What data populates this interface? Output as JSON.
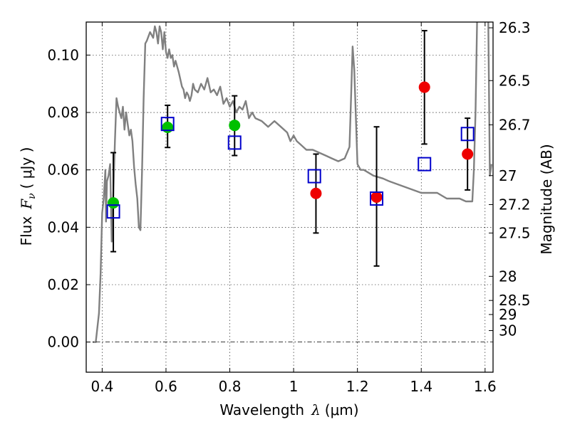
{
  "chart_data": {
    "type": "scatter",
    "title": "",
    "xlabel_main": "Wavelength",
    "xlabel_symbol": "λ",
    "xlabel_unit": "(μm)",
    "ylabel_main": "Flux",
    "ylabel_symbol": "F",
    "ylabel_sub": "ν",
    "ylabel_unit": "( μJy )",
    "y2label": "Magnitude (AB)",
    "xlim": [
      0.35,
      1.625
    ],
    "ylim": [
      -0.0105,
      0.1115
    ],
    "grid": true,
    "x_ticks": [
      {
        "value": 0.4,
        "label": "0.4"
      },
      {
        "value": 0.6,
        "label": "0.6"
      },
      {
        "value": 0.8,
        "label": "0.8"
      },
      {
        "value": 1.0,
        "label": "1"
      },
      {
        "value": 1.2,
        "label": "1.2"
      },
      {
        "value": 1.4,
        "label": "1.4"
      },
      {
        "value": 1.6,
        "label": "1.6"
      }
    ],
    "y_ticks": [
      {
        "value": 0.0,
        "label": "0.00"
      },
      {
        "value": 0.02,
        "label": "0.02"
      },
      {
        "value": 0.04,
        "label": "0.04"
      },
      {
        "value": 0.06,
        "label": "0.06"
      },
      {
        "value": 0.08,
        "label": "0.08"
      },
      {
        "value": 0.1,
        "label": "0.10"
      }
    ],
    "y2_ticks": [
      {
        "flux": 0.1095,
        "label": "26.3"
      },
      {
        "flux": 0.0911,
        "label": "26.5"
      },
      {
        "flux": 0.0757,
        "label": "26.7"
      },
      {
        "flux": 0.058,
        "label": "27"
      },
      {
        "flux": 0.0479,
        "label": "27.2"
      },
      {
        "flux": 0.038,
        "label": "27.5"
      },
      {
        "flux": 0.0229,
        "label": "28"
      },
      {
        "flux": 0.0145,
        "label": "28.5"
      },
      {
        "flux": 0.0096,
        "label": "29"
      },
      {
        "flux": 0.004,
        "label": "30"
      }
    ],
    "series": [
      {
        "kind": "line",
        "color": "#808080",
        "x": [
          0.37,
          0.38,
          0.39,
          0.395,
          0.4,
          0.405,
          0.41,
          0.412,
          0.415,
          0.42,
          0.425,
          0.43,
          0.435,
          0.44,
          0.445,
          0.45,
          0.455,
          0.46,
          0.465,
          0.47,
          0.475,
          0.48,
          0.485,
          0.49,
          0.495,
          0.5,
          0.505,
          0.51,
          0.515,
          0.52,
          0.525,
          0.53,
          0.535,
          0.54,
          0.55,
          0.56,
          0.565,
          0.57,
          0.575,
          0.58,
          0.585,
          0.59,
          0.595,
          0.6,
          0.605,
          0.61,
          0.615,
          0.62,
          0.625,
          0.63,
          0.64,
          0.65,
          0.655,
          0.66,
          0.665,
          0.67,
          0.675,
          0.68,
          0.685,
          0.69,
          0.7,
          0.71,
          0.72,
          0.73,
          0.74,
          0.75,
          0.76,
          0.77,
          0.78,
          0.79,
          0.8,
          0.81,
          0.82,
          0.83,
          0.84,
          0.85,
          0.86,
          0.87,
          0.88,
          0.9,
          0.92,
          0.94,
          0.96,
          0.98,
          0.99,
          1.0,
          1.01,
          1.02,
          1.04,
          1.06,
          1.08,
          1.1,
          1.12,
          1.14,
          1.16,
          1.175,
          1.18,
          1.185,
          1.19,
          1.2,
          1.205,
          1.21,
          1.22,
          1.25,
          1.28,
          1.3,
          1.35,
          1.4,
          1.45,
          1.48,
          1.5,
          1.52,
          1.54,
          1.56,
          1.565,
          1.57,
          1.575,
          1.58,
          1.585,
          1.59,
          1.595,
          1.6,
          1.605,
          1.61,
          1.615,
          1.62
        ],
        "y": [
          0.0,
          0.0,
          0.01,
          0.024,
          0.045,
          0.05,
          0.06,
          0.042,
          0.056,
          0.058,
          0.062,
          0.035,
          0.052,
          0.07,
          0.085,
          0.082,
          0.08,
          0.078,
          0.082,
          0.074,
          0.08,
          0.076,
          0.072,
          0.074,
          0.07,
          0.061,
          0.055,
          0.05,
          0.04,
          0.039,
          0.06,
          0.085,
          0.104,
          0.105,
          0.108,
          0.106,
          0.11,
          0.108,
          0.104,
          0.11,
          0.108,
          0.102,
          0.108,
          0.101,
          0.099,
          0.102,
          0.099,
          0.1,
          0.096,
          0.098,
          0.094,
          0.089,
          0.088,
          0.085,
          0.087,
          0.086,
          0.084,
          0.086,
          0.09,
          0.088,
          0.087,
          0.09,
          0.088,
          0.092,
          0.087,
          0.088,
          0.086,
          0.089,
          0.083,
          0.085,
          0.082,
          0.084,
          0.08,
          0.082,
          0.081,
          0.084,
          0.078,
          0.08,
          0.078,
          0.077,
          0.075,
          0.077,
          0.075,
          0.073,
          0.07,
          0.072,
          0.07,
          0.069,
          0.067,
          0.067,
          0.066,
          0.065,
          0.064,
          0.063,
          0.064,
          0.068,
          0.085,
          0.103,
          0.095,
          0.062,
          0.061,
          0.06,
          0.06,
          0.058,
          0.057,
          0.056,
          0.054,
          0.052,
          0.052,
          0.05,
          0.05,
          0.05,
          0.049,
          0.049,
          0.06,
          0.08,
          0.112,
          0.112,
          0.112,
          0.112,
          0.112,
          0.112,
          0.112,
          0.112,
          0.058,
          0.062
        ]
      },
      {
        "kind": "scatter",
        "marker": "circle",
        "color": "#00c000",
        "x": [
          0.435,
          0.605,
          0.815
        ],
        "y": [
          0.0485,
          0.0748,
          0.0755
        ]
      },
      {
        "kind": "scatter",
        "marker": "circle",
        "color": "#ee0000",
        "x": [
          1.07,
          1.26,
          1.41,
          1.545
        ],
        "y": [
          0.0518,
          0.0505,
          0.0888,
          0.0655
        ]
      },
      {
        "kind": "scatter",
        "marker": "open-square",
        "color": "#0000cc",
        "x": [
          0.435,
          0.605,
          0.815,
          1.065,
          1.26,
          1.41,
          1.545
        ],
        "y": [
          0.0455,
          0.076,
          0.0695,
          0.0578,
          0.05,
          0.062,
          0.0725
        ]
      },
      {
        "kind": "errorbar",
        "color": "#000000",
        "x": [
          0.435,
          0.605,
          0.815,
          1.07,
          1.26,
          1.41,
          1.545
        ],
        "ylow": [
          0.0315,
          0.0678,
          0.065,
          0.038,
          0.0265,
          0.069,
          0.053
        ],
        "yhigh": [
          0.066,
          0.0825,
          0.0858,
          0.0655,
          0.075,
          0.1085,
          0.078
        ]
      }
    ]
  }
}
